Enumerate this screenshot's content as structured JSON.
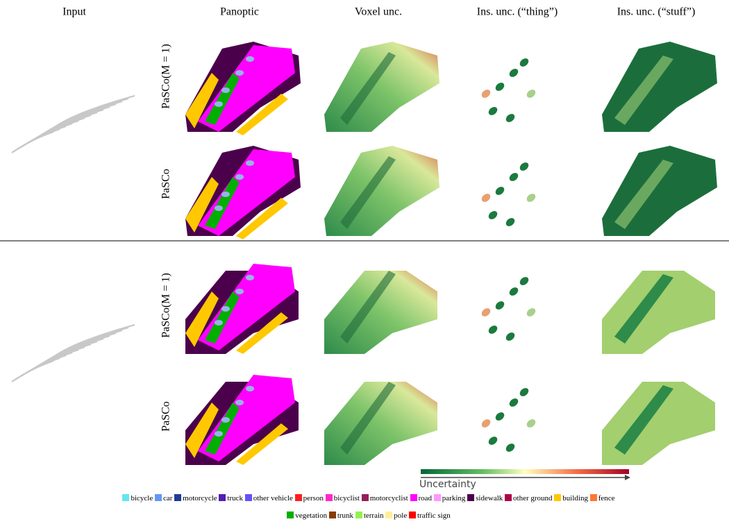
{
  "header": {
    "columns": [
      "Input",
      "Panoptic",
      "Voxel unc.",
      "Ins. unc. (“thing”)",
      "Ins. unc. (“stuff”)"
    ]
  },
  "rows": [
    {
      "label": "PaSCo(M = 1)"
    },
    {
      "label": "PaSCo"
    },
    {
      "label": "PaSCo(M = 1)"
    },
    {
      "label": "PaSCo"
    }
  ],
  "colorbar": {
    "label": "Uncertainty"
  },
  "legend": {
    "items": [
      {
        "label": "bicycle",
        "color": "#64e6f0"
      },
      {
        "label": "car",
        "color": "#6496f5"
      },
      {
        "label": "motorcycle",
        "color": "#1e3c96"
      },
      {
        "label": "truck",
        "color": "#501eb4"
      },
      {
        "label": "other vehicle",
        "color": "#6450fa"
      },
      {
        "label": "person",
        "color": "#ff1e1e"
      },
      {
        "label": "bicyclist",
        "color": "#ff28c8"
      },
      {
        "label": "motorcyclist",
        "color": "#961e5a"
      },
      {
        "label": "road",
        "color": "#ff00ff"
      },
      {
        "label": "parking",
        "color": "#ff96ff"
      },
      {
        "label": "sidewalk",
        "color": "#4b004b"
      },
      {
        "label": "other ground",
        "color": "#af004b"
      },
      {
        "label": "building",
        "color": "#ffc800"
      },
      {
        "label": "fence",
        "color": "#ff7832"
      },
      {
        "label": "vegetation",
        "color": "#00af00"
      },
      {
        "label": "trunk",
        "color": "#873c00"
      },
      {
        "label": "terrain",
        "color": "#96f050"
      },
      {
        "label": "pole",
        "color": "#fff096"
      },
      {
        "label": "traffic sign",
        "color": "#ff0000"
      }
    ]
  }
}
